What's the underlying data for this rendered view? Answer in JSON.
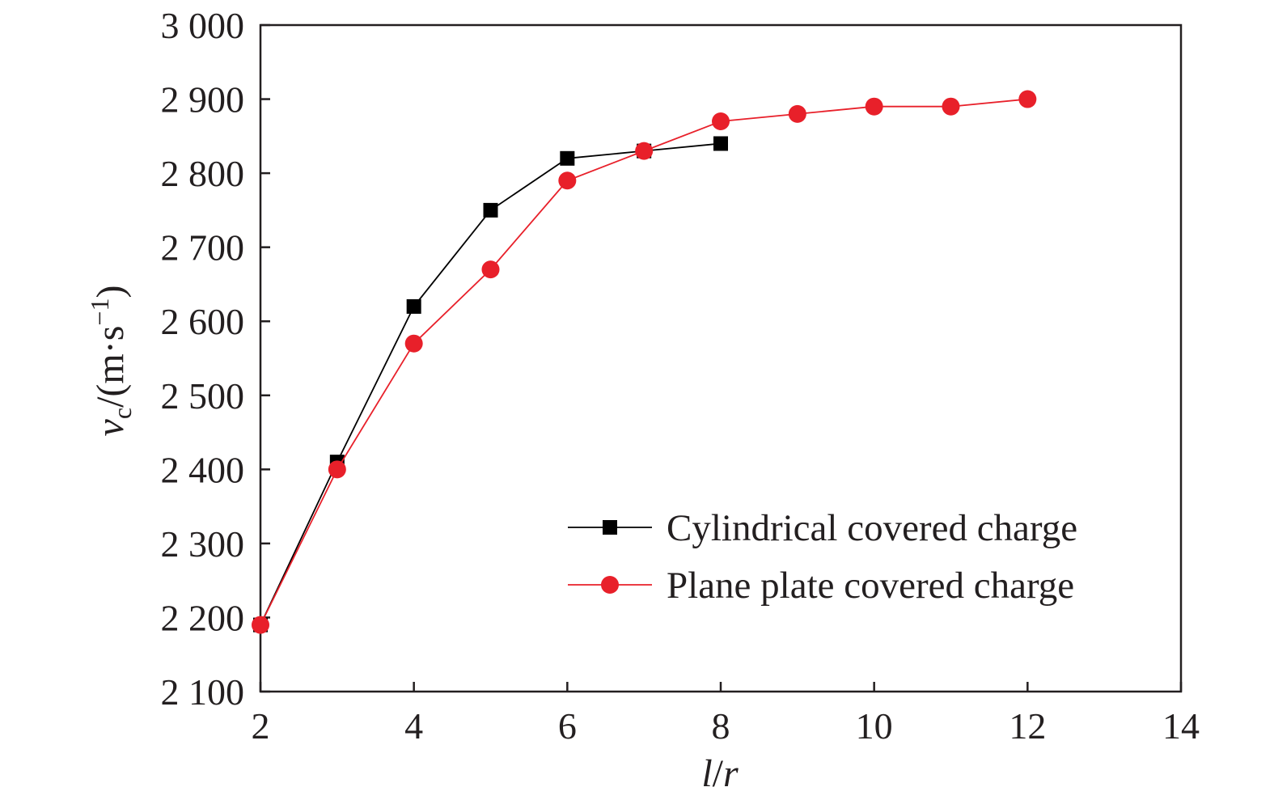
{
  "chart_data": {
    "type": "line",
    "xlabel": {
      "var1": "l",
      "sep": "/",
      "var2": "r"
    },
    "ylabel": {
      "var": "v",
      "sub": "c",
      "unit_pre": "/(m·s",
      "unit_sup": "−1",
      "unit_post": ")"
    },
    "xlim": [
      2,
      14
    ],
    "ylim": [
      2100,
      3000
    ],
    "x_ticks": [
      2,
      4,
      6,
      8,
      10,
      12,
      14
    ],
    "y_ticks": [
      2100,
      2200,
      2300,
      2400,
      2500,
      2600,
      2700,
      2800,
      2900,
      3000
    ],
    "x_tick_labels": [
      "2",
      "4",
      "6",
      "8",
      "10",
      "12",
      "14"
    ],
    "y_tick_labels": [
      "2 100",
      "2 200",
      "2 300",
      "2 400",
      "2 500",
      "2 600",
      "2 700",
      "2 800",
      "2 900",
      "3 000"
    ],
    "grid": false,
    "legend_position": "bottom-right",
    "series": [
      {
        "name": "Cylindrical covered charge",
        "marker": "square",
        "color": "#000000",
        "x": [
          2,
          3,
          4,
          5,
          6,
          7,
          8
        ],
        "y": [
          2190,
          2410,
          2620,
          2750,
          2820,
          2830,
          2840
        ]
      },
      {
        "name": "Plane plate covered charge",
        "marker": "circle",
        "color": "#e8202a",
        "x": [
          2,
          3,
          4,
          5,
          6,
          7,
          8,
          9,
          10,
          11,
          12
        ],
        "y": [
          2190,
          2400,
          2570,
          2670,
          2790,
          2830,
          2870,
          2880,
          2890,
          2890,
          2900
        ]
      }
    ]
  }
}
